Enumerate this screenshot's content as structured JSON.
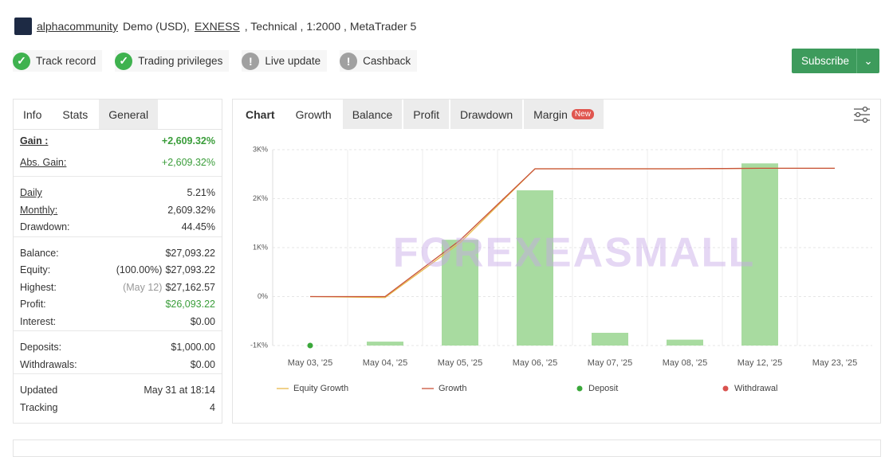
{
  "header": {
    "user": "alphacommunity",
    "account": "Demo (USD),",
    "broker": "EXNESS",
    "details": ", Technical , 1:2000 , MetaTrader 5"
  },
  "badges": [
    {
      "label": "Track record",
      "verified": true
    },
    {
      "label": "Trading privileges",
      "verified": true
    },
    {
      "label": "Live update",
      "verified": false
    },
    {
      "label": "Cashback",
      "verified": false
    }
  ],
  "subscribe": "Subscribe",
  "watermark": "FOREXEASMALL",
  "stats_tabs": {
    "items": [
      "Info",
      "Stats",
      "General"
    ],
    "active": 1
  },
  "stats": [
    [
      {
        "label": "Gain :",
        "value": "+2,609.32%",
        "color": "#3a9d3a",
        "underline": true,
        "bold": true
      },
      {
        "label": "Abs. Gain:",
        "value": "+2,609.32%",
        "color": "#3a9d3a",
        "underline": true
      }
    ],
    [
      {
        "label": "Daily",
        "value": "5.21%",
        "underline": true
      },
      {
        "label": "Monthly:",
        "value": "2,609.32%",
        "underline": true
      },
      {
        "label": "Drawdown:",
        "value": "44.45%"
      }
    ],
    [
      {
        "label": "Balance:",
        "value": "$27,093.22"
      },
      {
        "label": "Equity:",
        "note": "(100.00%)",
        "value": "$27,093.22"
      },
      {
        "label": "Highest:",
        "note": "(May 12)",
        "note_color": "#999999",
        "value": "$27,162.57"
      },
      {
        "label": "Profit:",
        "value": "$26,093.22",
        "color": "#3a9d3a"
      },
      {
        "label": "Interest:",
        "value": "$0.00"
      }
    ],
    [
      {
        "label": "Deposits:",
        "value": "$1,000.00"
      },
      {
        "label": "Withdrawals:",
        "value": "$0.00"
      }
    ],
    [
      {
        "label": "Updated",
        "value": "May 31 at 18:14"
      },
      {
        "label": "Tracking",
        "value": "4"
      }
    ]
  ],
  "chart_tabs": {
    "title": "Chart",
    "items": [
      "Growth",
      "Balance",
      "Profit",
      "Drawdown",
      "Margin"
    ],
    "active": 0,
    "badge": "New"
  },
  "chart": {
    "type": "combo",
    "categories": [
      "May 03, '25",
      "May 04, '25",
      "May 05, '25",
      "May 06, '25",
      "May 07, '25",
      "May 08, '25",
      "May 12, '25",
      "May 23, '25"
    ],
    "ylim": [
      -1000,
      3000
    ],
    "yticks": [
      {
        "value": -1000,
        "label": "-1K%"
      },
      {
        "value": 0,
        "label": "0%"
      },
      {
        "value": 1000,
        "label": "1K%"
      },
      {
        "value": 2000,
        "label": "2K%"
      },
      {
        "value": 3000,
        "label": "3K%"
      }
    ],
    "grid": true,
    "bars": {
      "color": "#a8dba0",
      "values": [
        null,
        -920,
        1160,
        2170,
        -740,
        -880,
        2720,
        null
      ]
    },
    "series": [
      {
        "name": "Equity Growth",
        "kind": "line",
        "color": "#e8b84a",
        "values": [
          0,
          -20,
          1100,
          2610,
          2610,
          2610,
          2620,
          2620
        ]
      },
      {
        "name": "Growth",
        "kind": "line",
        "color": "#c8533a",
        "values": [
          0,
          0,
          1150,
          2610,
          2610,
          2610,
          2620,
          2620
        ]
      },
      {
        "name": "Deposit",
        "kind": "point",
        "color": "#3aa83a",
        "values": [
          -1000,
          null,
          null,
          null,
          null,
          null,
          null,
          null
        ]
      },
      {
        "name": "Withdrawal",
        "kind": "point",
        "color": "#d9534f",
        "values": [
          null,
          null,
          null,
          null,
          null,
          null,
          null,
          null
        ]
      }
    ]
  }
}
